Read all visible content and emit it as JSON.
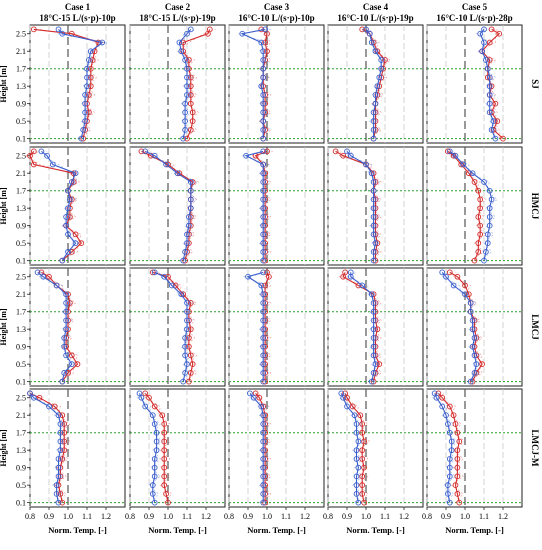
{
  "chart_data": {
    "type": "line",
    "case_titles": [
      {
        "line1": "Case 1",
        "line2": "18°C-15 L/(s·p)-10p"
      },
      {
        "line1": "Case 2",
        "line2": "18°C-15 L/(s·p)-19p"
      },
      {
        "line1": "Case 3",
        "line2": "16°C-10 L/(s·p)-10p"
      },
      {
        "line1": "Case 4",
        "line2": "16°C-10 L/(s·p)-19p"
      },
      {
        "line1": "Case 5",
        "line2": "16°C-10 L/(s·p)-28p"
      }
    ],
    "row_labels": [
      "SJ",
      "HMCJ",
      "LMCJ",
      "LMCJ-M"
    ],
    "ylabel": "Height [m]",
    "xlabel": "Norm. Temp. [-]",
    "y_ticks": [
      "0.1",
      "0.5",
      "0.9",
      "1.3",
      "1.7",
      "2.1",
      "2.5"
    ],
    "x_ticks": [
      "0.8",
      "0.9",
      "1.0",
      "1.1",
      "1.2"
    ],
    "xlim": [
      0.8,
      1.3
    ],
    "ylim": [
      0.0,
      2.7
    ],
    "heights": [
      0.1,
      0.3,
      0.5,
      0.7,
      0.9,
      1.1,
      1.3,
      1.5,
      1.7,
      1.9,
      2.1,
      2.3,
      2.5,
      2.6
    ],
    "reference_x": 1.0,
    "reference_heights": [
      0.1,
      1.7
    ],
    "colors": {
      "blue": "#3a5fcd",
      "red": "#d42a2a",
      "green": "#2ca02c",
      "ref": "#555555"
    },
    "panels": [
      [
        {
          "red": [
            1.08,
            1.09,
            1.1,
            1.11,
            1.1,
            1.11,
            1.12,
            1.12,
            1.12,
            1.13,
            1.14,
            1.16,
            1.02,
            0.82
          ],
          "blue": [
            1.07,
            1.08,
            1.09,
            1.09,
            1.09,
            1.09,
            1.1,
            1.1,
            1.1,
            1.11,
            1.12,
            1.18,
            0.97,
            0.95
          ]
        },
        {
          "red": [
            1.1,
            1.12,
            1.13,
            1.13,
            1.12,
            1.12,
            1.12,
            1.12,
            1.11,
            1.11,
            1.08,
            1.08,
            1.21,
            1.22
          ],
          "blue": [
            1.08,
            1.09,
            1.09,
            1.09,
            1.09,
            1.1,
            1.1,
            1.1,
            1.1,
            1.09,
            1.07,
            1.06,
            1.1,
            1.12
          ]
        },
        {
          "red": [
            0.98,
            0.99,
            0.98,
            0.99,
            0.99,
            0.99,
            0.98,
            0.98,
            0.98,
            0.99,
            1.0,
            0.99,
            1.0,
            0.97
          ],
          "blue": [
            0.98,
            0.98,
            0.98,
            0.98,
            0.98,
            0.98,
            0.97,
            0.98,
            0.98,
            0.98,
            0.98,
            0.97,
            0.87,
            0.99
          ]
        },
        {
          "red": [
            1.04,
            1.05,
            1.05,
            1.05,
            1.05,
            1.06,
            1.07,
            1.08,
            1.09,
            1.1,
            1.06,
            1.04,
            1.02,
            0.98
          ],
          "blue": [
            1.04,
            1.04,
            1.04,
            1.04,
            1.05,
            1.05,
            1.06,
            1.07,
            1.08,
            1.08,
            1.05,
            1.03,
            1.02,
            1.0
          ]
        },
        {
          "red": [
            1.2,
            1.15,
            1.17,
            1.14,
            1.16,
            1.13,
            1.14,
            1.12,
            1.12,
            1.13,
            1.09,
            1.13,
            1.18,
            1.14
          ],
          "blue": [
            1.16,
            1.14,
            1.15,
            1.13,
            1.13,
            1.13,
            1.13,
            1.13,
            1.12,
            1.11,
            1.09,
            1.1,
            1.08,
            1.1
          ]
        }
      ],
      [
        {
          "red": [
            0.97,
            1.02,
            1.07,
            1.04,
            0.99,
            1.01,
            1.01,
            1.02,
            1.0,
            1.03,
            1.03,
            0.82,
            0.8,
            0.82
          ],
          "blue": [
            0.97,
            1.0,
            1.04,
            1.0,
            0.99,
            0.99,
            1.0,
            1.01,
            1.0,
            1.02,
            1.04,
            0.92,
            0.89,
            0.86
          ]
        },
        {
          "red": [
            1.09,
            1.1,
            1.11,
            1.11,
            1.12,
            1.12,
            1.12,
            1.12,
            1.12,
            1.13,
            1.06,
            1.0,
            0.91,
            0.86
          ],
          "blue": [
            1.08,
            1.09,
            1.1,
            1.1,
            1.11,
            1.11,
            1.12,
            1.12,
            1.12,
            1.12,
            1.05,
            0.99,
            0.93,
            0.88
          ]
        },
        {
          "red": [
            0.99,
            0.99,
            0.99,
            0.99,
            0.99,
            0.99,
            0.99,
            0.99,
            0.99,
            0.99,
            0.99,
            0.98,
            0.94,
            1.0
          ],
          "blue": [
            0.98,
            0.98,
            0.98,
            0.98,
            0.98,
            0.98,
            0.98,
            0.98,
            0.98,
            0.98,
            0.98,
            0.98,
            0.89,
            0.98
          ]
        },
        {
          "red": [
            1.05,
            1.05,
            1.06,
            1.05,
            1.05,
            1.05,
            1.05,
            1.05,
            1.04,
            1.05,
            1.04,
            1.0,
            0.88,
            0.84
          ],
          "blue": [
            1.04,
            1.04,
            1.05,
            1.04,
            1.04,
            1.04,
            1.04,
            1.04,
            1.04,
            1.04,
            1.03,
            1.0,
            0.92,
            0.9
          ]
        },
        {
          "red": [
            1.05,
            1.07,
            1.07,
            1.08,
            1.08,
            1.07,
            1.08,
            1.08,
            1.07,
            1.05,
            1.02,
            0.98,
            0.94,
            0.91
          ],
          "blue": [
            1.1,
            1.11,
            1.12,
            1.12,
            1.13,
            1.13,
            1.13,
            1.14,
            1.13,
            1.1,
            1.04,
            0.99,
            0.95,
            0.92
          ]
        }
      ],
      [
        {
          "red": [
            0.97,
            1.0,
            1.05,
            1.02,
            0.99,
            0.99,
            1.0,
            1.0,
            1.0,
            1.01,
            1.0,
            0.94,
            0.9,
            0.86
          ],
          "blue": [
            0.97,
            0.98,
            1.02,
            0.99,
            0.98,
            0.98,
            0.99,
            0.99,
            0.99,
            0.99,
            0.99,
            0.94,
            0.87,
            0.84
          ]
        },
        {
          "red": [
            1.11,
            1.12,
            1.13,
            1.12,
            1.11,
            1.11,
            1.12,
            1.11,
            1.11,
            1.12,
            1.08,
            1.04,
            1.0,
            0.92
          ],
          "blue": [
            1.08,
            1.09,
            1.1,
            1.09,
            1.09,
            1.09,
            1.1,
            1.1,
            1.1,
            1.1,
            1.07,
            1.02,
            0.98,
            0.93
          ]
        },
        {
          "red": [
            0.99,
            0.99,
            0.99,
            0.99,
            0.99,
            0.99,
            0.99,
            0.99,
            0.99,
            0.99,
            0.99,
            0.99,
            1.01,
            1.0
          ],
          "blue": [
            0.98,
            0.98,
            0.98,
            0.98,
            0.98,
            0.98,
            0.98,
            0.98,
            0.98,
            0.98,
            0.98,
            0.97,
            0.9,
            0.98
          ]
        },
        {
          "red": [
            1.04,
            1.05,
            1.07,
            1.05,
            1.05,
            1.05,
            1.06,
            1.05,
            1.05,
            1.05,
            1.04,
            0.96,
            0.88,
            0.89
          ],
          "blue": [
            1.03,
            1.04,
            1.05,
            1.04,
            1.04,
            1.04,
            1.04,
            1.04,
            1.04,
            1.04,
            1.03,
            0.98,
            0.92,
            0.92
          ]
        },
        {
          "red": [
            1.04,
            1.06,
            1.09,
            1.06,
            1.05,
            1.06,
            1.05,
            1.05,
            1.03,
            1.03,
            1.02,
            1.0,
            0.96,
            0.92
          ],
          "blue": [
            1.03,
            1.05,
            1.06,
            1.05,
            1.04,
            1.05,
            1.04,
            1.04,
            1.03,
            1.03,
            1.0,
            0.94,
            0.9,
            0.88
          ]
        }
      ],
      [
        {
          "red": [
            0.97,
            0.96,
            0.95,
            0.96,
            0.96,
            0.97,
            0.98,
            0.98,
            0.98,
            0.98,
            0.97,
            0.93,
            0.85,
            0.8
          ],
          "blue": [
            0.95,
            0.94,
            0.94,
            0.95,
            0.95,
            0.95,
            0.96,
            0.96,
            0.96,
            0.96,
            0.95,
            0.9,
            0.82,
            0.8
          ]
        },
        {
          "red": [
            1.0,
            0.99,
            0.98,
            0.98,
            0.98,
            0.98,
            0.98,
            0.98,
            0.98,
            0.98,
            0.97,
            0.93,
            0.9,
            0.88
          ],
          "blue": [
            0.93,
            0.92,
            0.92,
            0.93,
            0.93,
            0.93,
            0.94,
            0.94,
            0.94,
            0.93,
            0.92,
            0.88,
            0.86,
            0.85
          ]
        },
        {
          "red": [
            0.99,
            0.99,
            0.99,
            0.99,
            0.99,
            0.99,
            0.99,
            0.99,
            0.99,
            0.99,
            0.99,
            0.98,
            0.96,
            0.94
          ],
          "blue": [
            0.98,
            0.98,
            0.98,
            0.98,
            0.98,
            0.98,
            0.98,
            0.98,
            0.98,
            0.98,
            0.98,
            0.97,
            0.93,
            0.91
          ]
        },
        {
          "red": [
            0.99,
            0.98,
            0.98,
            0.98,
            0.99,
            0.98,
            0.98,
            0.99,
            0.98,
            0.98,
            0.97,
            0.93,
            0.9,
            0.89
          ],
          "blue": [
            0.96,
            0.95,
            0.95,
            0.95,
            0.96,
            0.95,
            0.95,
            0.96,
            0.95,
            0.95,
            0.94,
            0.9,
            0.88,
            0.87
          ]
        },
        {
          "red": [
            0.97,
            0.96,
            0.95,
            0.96,
            0.96,
            0.96,
            0.96,
            0.97,
            0.96,
            0.95,
            0.94,
            0.92,
            0.88,
            0.86
          ],
          "blue": [
            0.92,
            0.91,
            0.91,
            0.92,
            0.92,
            0.92,
            0.93,
            0.93,
            0.92,
            0.91,
            0.9,
            0.88,
            0.85,
            0.84
          ]
        }
      ]
    ]
  }
}
